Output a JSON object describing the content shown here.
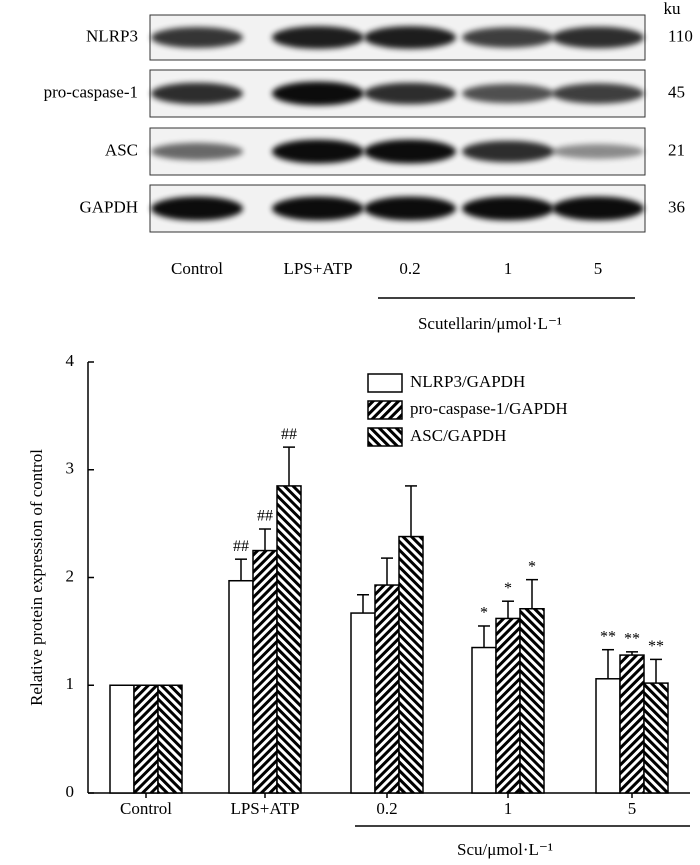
{
  "blot": {
    "unit": "ku",
    "rows": [
      {
        "label": "NLRP3",
        "size": "110"
      },
      {
        "label": "pro-caspase-1",
        "size": "45"
      },
      {
        "label": "ASC",
        "size": "21"
      },
      {
        "label": "GAPDH",
        "size": "36"
      }
    ],
    "lanes": [
      "Control",
      "LPS+ATP",
      "0.2",
      "1",
      "5"
    ],
    "group_label": "Scutellarin/μmol·L⁻¹"
  },
  "chart_data": {
    "type": "bar",
    "y_label": "Relative protein expression of control",
    "categories": [
      "Control",
      "LPS+ATP",
      "0.2",
      "1",
      "5"
    ],
    "group_label": "Scu/μmol·L⁻¹",
    "ylim": [
      0,
      4
    ],
    "yticks": [
      0,
      1,
      2,
      3,
      4
    ],
    "legend": "upper right",
    "series": [
      {
        "name": "NLRP3/GAPDH",
        "color": "#000000",
        "hatch": null,
        "values": [
          1,
          1.97,
          1.67,
          1.35,
          1.06
        ],
        "errors": [
          0,
          0.2,
          0.17,
          0.2,
          0.27
        ],
        "labels": [
          null,
          "##",
          null,
          "*",
          "**"
        ]
      },
      {
        "name": "pro-caspase-1/GAPDH",
        "color": "#000000",
        "hatch": "/",
        "values": [
          1,
          2.25,
          1.93,
          1.62,
          1.28
        ],
        "errors": [
          0,
          0.2,
          0.25,
          0.16,
          0.03
        ],
        "labels": [
          null,
          "##",
          null,
          "*",
          "**"
        ]
      },
      {
        "name": "ASC/GAPDH",
        "color": "#000000",
        "hatch": "\\",
        "values": [
          1,
          2.85,
          2.38,
          1.71,
          1.02
        ],
        "errors": [
          0,
          0.36,
          0.47,
          0.27,
          0.22
        ],
        "labels": [
          null,
          "##",
          null,
          "*",
          "**"
        ]
      }
    ]
  }
}
